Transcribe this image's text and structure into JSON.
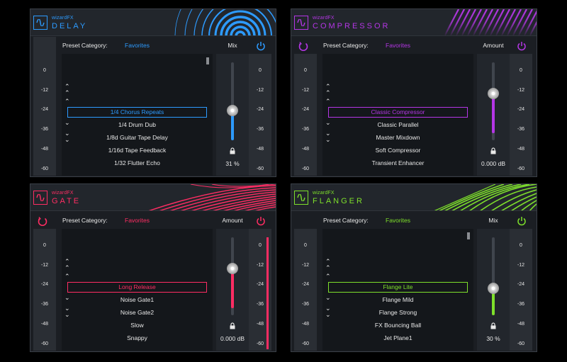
{
  "colors": {
    "delay": "#2d9bff",
    "compressor": "#b536e6",
    "gate": "#ff2d63",
    "flanger": "#7ee02b"
  },
  "meter_ticks": [
    "0",
    "-12",
    "-24",
    "-36",
    "-48",
    "-60"
  ],
  "delay": {
    "brand": "wizardFX",
    "name": "DELAY",
    "preset_label": "Preset Category:",
    "preset_value": "Favorites",
    "control_label": "Mix",
    "control_value": "31 %",
    "level": 0.31,
    "presets": [
      "1/4 Chorus Repeats",
      "1/4 Drum Dub",
      "1/8d Guitar Tape Delay",
      "1/16d Tape Feedback",
      "1/32 Flutter Echo"
    ],
    "selected_index": 0
  },
  "compressor": {
    "brand": "wizardFX",
    "name": "COMPRESSOR",
    "preset_label": "Preset Category:",
    "preset_value": "Favorites",
    "control_label": "Amount",
    "control_value": "0.000 dB",
    "level": 0.72,
    "presets": [
      "Classic Compressor",
      "Classic Parallel",
      "Master Mixdown",
      "Soft Compressor",
      "Transient Enhancer"
    ],
    "selected_index": 0
  },
  "gate": {
    "brand": "wizardFX",
    "name": "GATE",
    "preset_label": "Preset Category:",
    "preset_value": "Favorites",
    "control_label": "Amount",
    "control_value": "0.000 dB",
    "level": 0.72,
    "presets": [
      "Long Release",
      "Noise Gate1",
      "Noise Gate2",
      "Slow",
      "Snappy"
    ],
    "selected_index": 0
  },
  "flanger": {
    "brand": "wizardFX",
    "name": "FLANGER",
    "preset_label": "Preset Category:",
    "preset_value": "Favorites",
    "control_label": "Mix",
    "control_value": "30 %",
    "level": 0.3,
    "presets": [
      "Flange Lite",
      "Flange Mild",
      "Flange Strong",
      "FX Bouncing Ball",
      "Jet Plane1"
    ],
    "selected_index": 0
  }
}
